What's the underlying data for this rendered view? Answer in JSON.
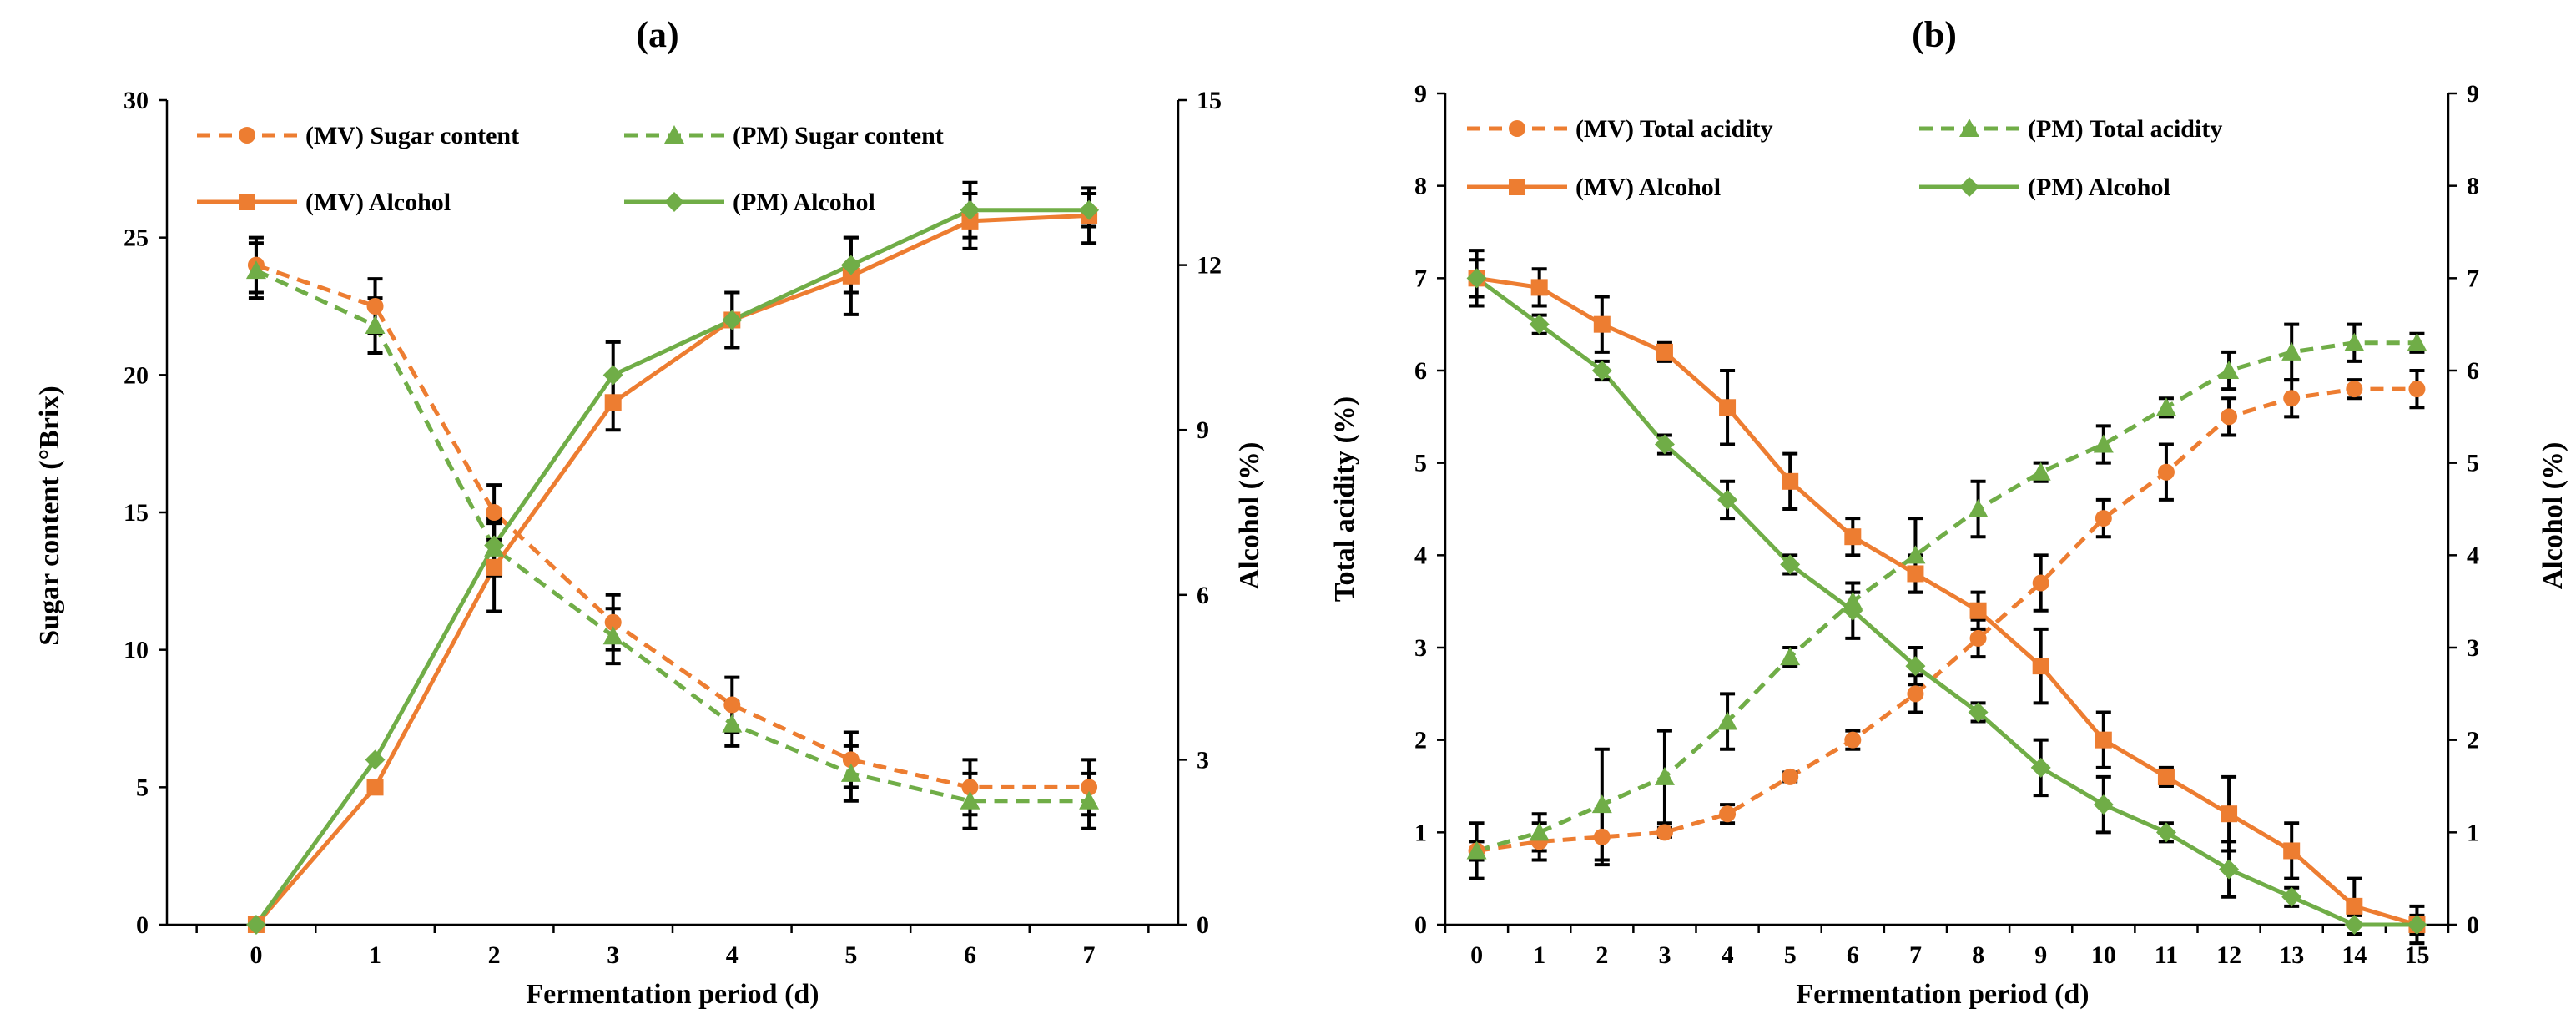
{
  "colors": {
    "mv": "#ED7D31",
    "pm": "#70AD47",
    "axis": "#000000",
    "error": "#000000"
  },
  "chart_data": [
    {
      "type": "line",
      "title": "(a)",
      "xlabel": "Fermentation period (d)",
      "ylabel": "Sugar content (°Brix)",
      "ylabel_right": "Alcohol (%)",
      "x": [
        0,
        1,
        2,
        3,
        4,
        5,
        6,
        7
      ],
      "xlim": [
        -0.75,
        7.75
      ],
      "ylim": [
        0,
        30
      ],
      "yticks": [
        0,
        5,
        10,
        15,
        20,
        25,
        30
      ],
      "ylim_right": [
        0,
        15
      ],
      "yticks_right": [
        0,
        3,
        6,
        9,
        12,
        15
      ],
      "legend": "top-left",
      "series": [
        {
          "name": "(MV) Sugar content",
          "axis": "left",
          "color": "mv",
          "dash": true,
          "marker": "circle",
          "values": [
            24,
            22.5,
            15,
            11,
            8,
            6,
            5,
            5
          ],
          "errors": [
            1.0,
            1.0,
            1.0,
            1.0,
            1.0,
            1.0,
            1.0,
            1.0
          ]
        },
        {
          "name": "(PM) Sugar content",
          "axis": "left",
          "color": "pm",
          "dash": true,
          "marker": "triangle",
          "values": [
            23.8,
            21.8,
            13.7,
            10.5,
            7.3,
            5.5,
            4.5,
            4.5
          ],
          "errors": [
            1.0,
            1.0,
            1.0,
            1.0,
            0.8,
            1.0,
            1.0,
            1.0
          ]
        },
        {
          "name": "(MV) Alcohol",
          "axis": "right",
          "color": "mv",
          "dash": false,
          "marker": "square",
          "values": [
            0,
            2.5,
            6.5,
            9.5,
            11,
            11.8,
            12.8,
            12.9
          ],
          "errors": [
            0,
            0,
            0.8,
            0.5,
            0.5,
            0.7,
            0.5,
            0.5
          ]
        },
        {
          "name": "(PM) Alcohol",
          "axis": "right",
          "color": "pm",
          "dash": false,
          "marker": "diamond",
          "values": [
            0,
            3,
            6.9,
            10,
            11,
            12,
            13,
            13
          ],
          "errors": [
            0,
            0,
            0.5,
            0.6,
            0.5,
            0.5,
            0.5,
            0.3
          ]
        }
      ]
    },
    {
      "type": "line",
      "title": "(b)",
      "xlabel": "Fermentation period (d)",
      "ylabel": "Total acidity (%)",
      "ylabel_right": "Alcohol (%)",
      "x": [
        0,
        1,
        2,
        3,
        4,
        5,
        6,
        7,
        8,
        9,
        10,
        11,
        12,
        13,
        14,
        15
      ],
      "xlim": [
        -0.5,
        15.5
      ],
      "ylim": [
        0,
        9
      ],
      "yticks": [
        0,
        1,
        2,
        3,
        4,
        5,
        6,
        7,
        8,
        9
      ],
      "ylim_right": [
        0,
        9
      ],
      "yticks_right": [
        0,
        1,
        2,
        3,
        4,
        5,
        6,
        7,
        8,
        9
      ],
      "legend": "top-left",
      "series": [
        {
          "name": "(MV) Total acidity",
          "axis": "left",
          "color": "mv",
          "dash": true,
          "marker": "circle",
          "values": [
            0.8,
            0.9,
            0.95,
            1.0,
            1.2,
            1.6,
            2.0,
            2.5,
            3.1,
            3.7,
            4.4,
            4.9,
            5.5,
            5.7,
            5.8,
            5.8
          ],
          "errors": [
            0.3,
            0.2,
            0.3,
            0.05,
            0.1,
            0.05,
            0.1,
            0.2,
            0.2,
            0.3,
            0.2,
            0.3,
            0.2,
            0.2,
            0.1,
            0.2
          ]
        },
        {
          "name": "(PM) Total acidity",
          "axis": "left",
          "color": "pm",
          "dash": true,
          "marker": "triangle",
          "values": [
            0.8,
            1.0,
            1.3,
            1.6,
            2.2,
            2.9,
            3.5,
            4.0,
            4.5,
            4.9,
            5.2,
            5.6,
            6.0,
            6.2,
            6.3,
            6.3
          ],
          "errors": [
            0.1,
            0.2,
            0.6,
            0.5,
            0.3,
            0.1,
            0.1,
            0.4,
            0.3,
            0.1,
            0.2,
            0.1,
            0.2,
            0.3,
            0.2,
            0.1
          ]
        },
        {
          "name": "(MV) Alcohol",
          "axis": "right",
          "color": "mv",
          "dash": false,
          "marker": "square",
          "values": [
            7.0,
            6.9,
            6.5,
            6.2,
            5.6,
            4.8,
            4.2,
            3.8,
            3.4,
            2.8,
            2.0,
            1.6,
            1.2,
            0.8,
            0.2,
            0
          ],
          "errors": [
            0.3,
            0.2,
            0.3,
            0.1,
            0.4,
            0.3,
            0.2,
            0.2,
            0.2,
            0.4,
            0.3,
            0.1,
            0.4,
            0.3,
            0.3,
            0.2
          ]
        },
        {
          "name": "(PM) Alcohol",
          "axis": "right",
          "color": "pm",
          "dash": false,
          "marker": "diamond",
          "values": [
            7.0,
            6.5,
            6.0,
            5.2,
            4.6,
            3.9,
            3.4,
            2.8,
            2.3,
            1.7,
            1.3,
            1.0,
            0.6,
            0.3,
            0.0,
            0.0
          ],
          "errors": [
            0.2,
            0.1,
            0.1,
            0.1,
            0.2,
            0.1,
            0.3,
            0.2,
            0.1,
            0.3,
            0.3,
            0.1,
            0.3,
            0.1,
            0.1,
            0.1
          ]
        }
      ]
    }
  ]
}
